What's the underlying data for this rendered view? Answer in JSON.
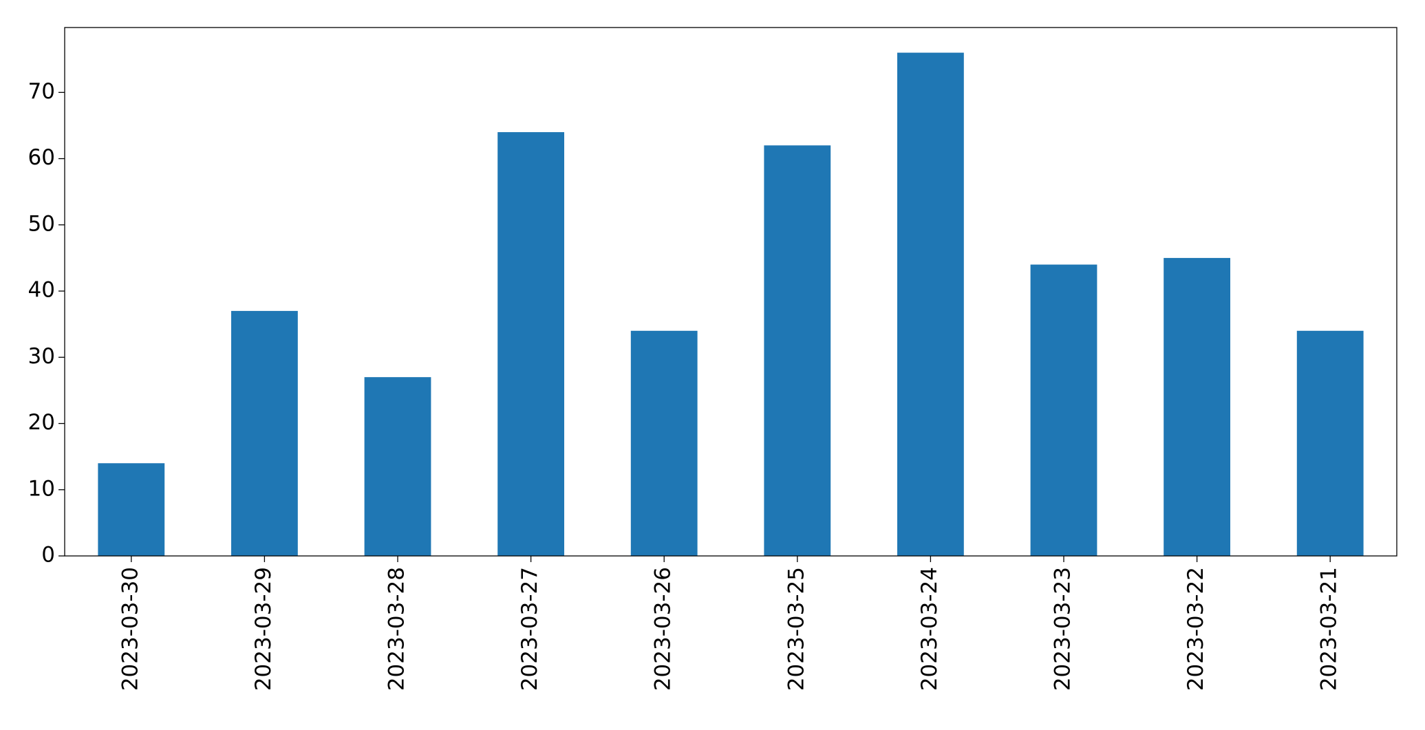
{
  "chart_data": {
    "type": "bar",
    "categories": [
      "2023-03-30",
      "2023-03-29",
      "2023-03-28",
      "2023-03-27",
      "2023-03-26",
      "2023-03-25",
      "2023-03-24",
      "2023-03-23",
      "2023-03-22",
      "2023-03-21"
    ],
    "values": [
      14,
      37,
      27,
      64,
      34,
      62,
      76,
      44,
      45,
      34
    ],
    "color": "#1f77b4",
    "ylim": [
      0,
      79.8
    ],
    "yticks": [
      0,
      10,
      20,
      30,
      40,
      50,
      60,
      70
    ],
    "grid": false
  }
}
